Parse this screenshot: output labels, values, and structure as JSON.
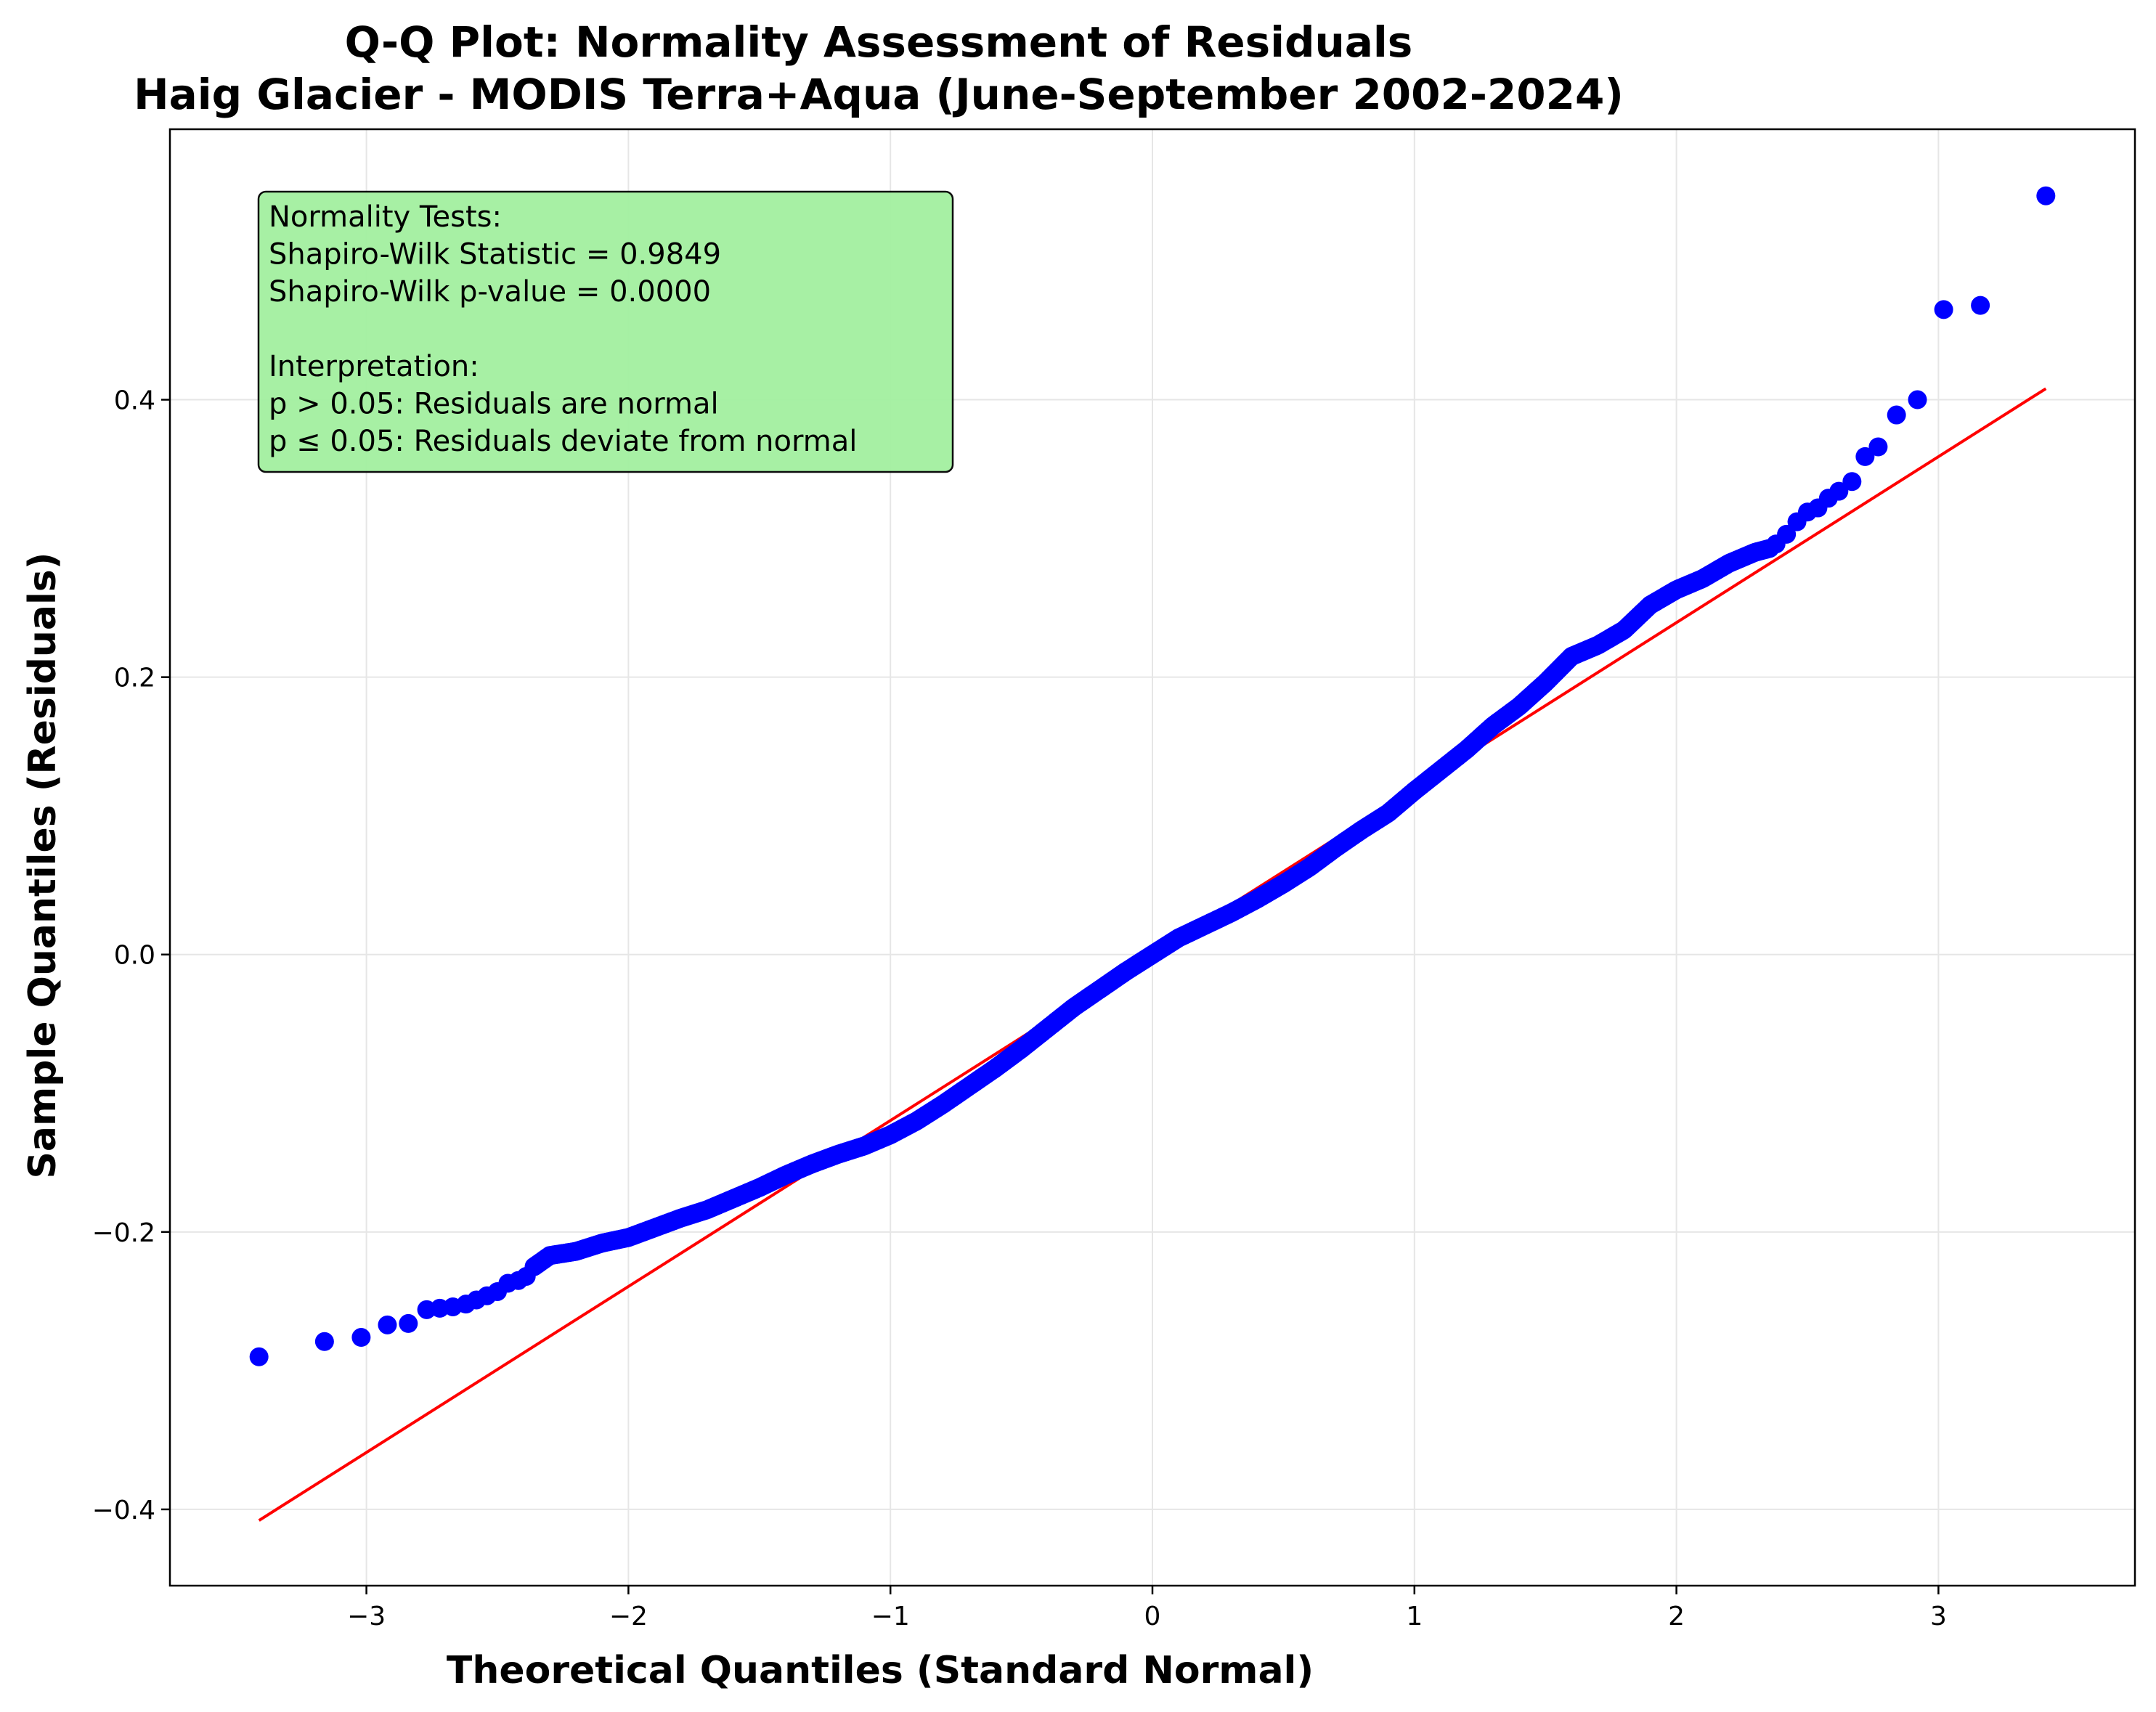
{
  "chart_data": {
    "type": "scatter",
    "title": "Q-Q Plot: Normality Assessment of Residuals",
    "subtitle": "Haig Glacier - MODIS Terra+Aqua (June-September 2002-2024)",
    "xlabel": "Theoretical Quantiles (Standard Normal)",
    "ylabel": "Sample Quantiles (Residuals)",
    "xlim": [
      -3.75,
      3.75
    ],
    "ylim": [
      -0.455,
      0.595
    ],
    "xticks": [
      -3,
      -2,
      -1,
      0,
      1,
      2,
      3
    ],
    "xtick_labels": [
      "−3",
      "−2",
      "−1",
      "0",
      "1",
      "2",
      "3"
    ],
    "yticks": [
      -0.4,
      -0.2,
      0.0,
      0.2,
      0.4
    ],
    "ytick_labels": [
      "−0.4",
      "−0.2",
      "0.0",
      "0.2",
      "0.4"
    ],
    "grid": true,
    "colors": {
      "points": "#0000ff",
      "reference_line": "#ff0000",
      "annotation_bg": "#a3f0a0",
      "grid": "#e6e6e6"
    },
    "series": [
      {
        "kind": "points",
        "tail_points": [
          [
            -3.41,
            -0.29
          ],
          [
            -3.16,
            -0.279
          ],
          [
            -3.02,
            -0.276
          ],
          [
            -2.92,
            -0.267
          ],
          [
            -2.84,
            -0.266
          ],
          [
            -2.77,
            -0.256
          ],
          [
            -2.72,
            -0.255
          ],
          [
            -2.67,
            -0.254
          ],
          [
            -2.62,
            -0.252
          ],
          [
            -2.58,
            -0.249
          ],
          [
            -2.54,
            -0.246
          ],
          [
            -2.5,
            -0.243
          ],
          [
            -2.46,
            -0.237
          ],
          [
            -2.42,
            -0.235
          ],
          [
            -2.39,
            -0.232
          ],
          [
            2.38,
            0.296
          ],
          [
            2.42,
            0.303
          ],
          [
            2.46,
            0.312
          ],
          [
            2.5,
            0.319
          ],
          [
            2.54,
            0.322
          ],
          [
            2.58,
            0.329
          ],
          [
            2.62,
            0.334
          ],
          [
            2.67,
            0.341
          ],
          [
            2.72,
            0.359
          ],
          [
            2.77,
            0.366
          ],
          [
            2.84,
            0.389
          ],
          [
            2.92,
            0.4
          ],
          [
            3.02,
            0.465
          ],
          [
            3.16,
            0.468
          ],
          [
            3.41,
            0.547
          ]
        ],
        "body_curve": [
          [
            -2.36,
            -0.225
          ],
          [
            -2.3,
            -0.217
          ],
          [
            -2.2,
            -0.214
          ],
          [
            -2.1,
            -0.208
          ],
          [
            -2.0,
            -0.204
          ],
          [
            -1.9,
            -0.197
          ],
          [
            -1.8,
            -0.19
          ],
          [
            -1.7,
            -0.184
          ],
          [
            -1.6,
            -0.176
          ],
          [
            -1.5,
            -0.168
          ],
          [
            -1.4,
            -0.159
          ],
          [
            -1.3,
            -0.151
          ],
          [
            -1.2,
            -0.144
          ],
          [
            -1.1,
            -0.138
          ],
          [
            -1.0,
            -0.13
          ],
          [
            -0.9,
            -0.12
          ],
          [
            -0.8,
            -0.108
          ],
          [
            -0.7,
            -0.095
          ],
          [
            -0.6,
            -0.082
          ],
          [
            -0.5,
            -0.068
          ],
          [
            -0.4,
            -0.053
          ],
          [
            -0.3,
            -0.038
          ],
          [
            -0.2,
            -0.025
          ],
          [
            -0.1,
            -0.012
          ],
          [
            0.0,
            0.0
          ],
          [
            0.1,
            0.012
          ],
          [
            0.2,
            0.021
          ],
          [
            0.3,
            0.03
          ],
          [
            0.4,
            0.04
          ],
          [
            0.5,
            0.051
          ],
          [
            0.6,
            0.063
          ],
          [
            0.7,
            0.077
          ],
          [
            0.8,
            0.09
          ],
          [
            0.9,
            0.102
          ],
          [
            1.0,
            0.118
          ],
          [
            1.1,
            0.133
          ],
          [
            1.2,
            0.148
          ],
          [
            1.3,
            0.165
          ],
          [
            1.4,
            0.179
          ],
          [
            1.5,
            0.196
          ],
          [
            1.6,
            0.215
          ],
          [
            1.7,
            0.223
          ],
          [
            1.8,
            0.234
          ],
          [
            1.9,
            0.252
          ],
          [
            2.0,
            0.263
          ],
          [
            2.1,
            0.271
          ],
          [
            2.2,
            0.282
          ],
          [
            2.3,
            0.29
          ],
          [
            2.36,
            0.293
          ]
        ],
        "body_x_range": [
          -2.36,
          2.36
        ]
      },
      {
        "kind": "reference_line",
        "x": [
          -3.41,
          3.41
        ],
        "y": [
          -0.408,
          0.408
        ]
      }
    ],
    "annotation": {
      "lines": [
        "Normality Tests:",
        "Shapiro-Wilk Statistic = 0.9849",
        "Shapiro-Wilk p-value = 0.0000",
        "",
        "Interpretation:",
        "p > 0.05: Residuals are normal",
        "p ≤ 0.05: Residuals deviate from normal"
      ],
      "placement": "top-left"
    }
  }
}
